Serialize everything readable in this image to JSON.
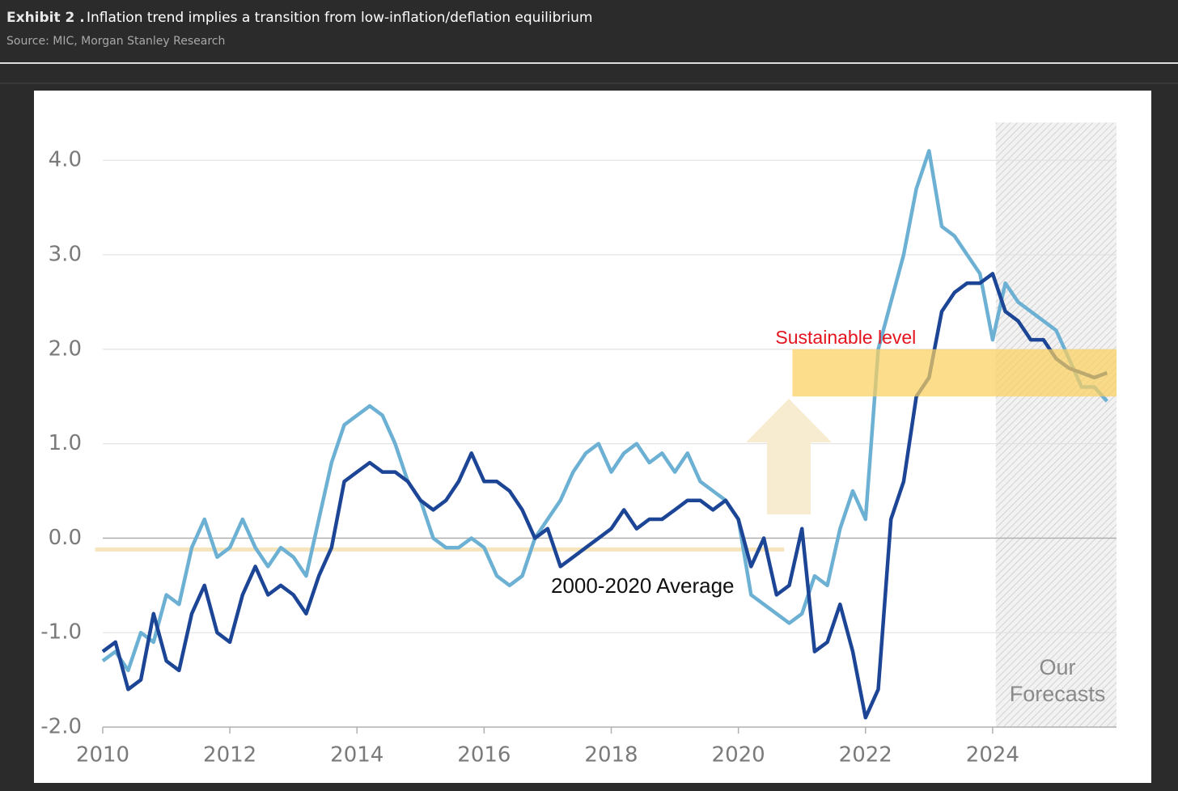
{
  "exhibit": "Exhibit 2 .",
  "chart_data": {
    "type": "line",
    "title": "Inflation trend implies a transition from low-inflation/deflation equilibrium",
    "subtitle": "Source: MIC, Morgan Stanley Research",
    "x": [
      2010.0,
      2010.2,
      2010.4,
      2010.6,
      2010.8,
      2011.0,
      2011.2,
      2011.4,
      2011.6,
      2011.8,
      2012.0,
      2012.2,
      2012.4,
      2012.6,
      2012.8,
      2013.0,
      2013.2,
      2013.4,
      2013.6,
      2013.8,
      2014.0,
      2014.2,
      2014.4,
      2014.6,
      2014.8,
      2015.0,
      2015.2,
      2015.4,
      2015.6,
      2015.8,
      2016.0,
      2016.2,
      2016.4,
      2016.6,
      2016.8,
      2017.0,
      2017.2,
      2017.4,
      2017.6,
      2017.8,
      2018.0,
      2018.2,
      2018.4,
      2018.6,
      2018.8,
      2019.0,
      2019.2,
      2019.4,
      2019.6,
      2019.8,
      2020.0,
      2020.2,
      2020.4,
      2020.6,
      2020.8,
      2021.0,
      2021.2,
      2021.4,
      2021.6,
      2021.8,
      2022.0,
      2022.2,
      2022.4,
      2022.6,
      2022.8,
      2023.0,
      2023.2,
      2023.4,
      2023.6,
      2023.8,
      2024.0,
      2024.2,
      2024.4,
      2024.6,
      2024.8,
      2025.0,
      2025.2,
      2025.4,
      2025.6,
      2025.8
    ],
    "series": [
      {
        "color": "#6cb0d3",
        "values": [
          -1.3,
          -1.2,
          -1.4,
          -1.0,
          -1.1,
          -0.6,
          -0.7,
          -0.1,
          0.2,
          -0.2,
          -0.1,
          0.2,
          -0.1,
          -0.3,
          -0.1,
          -0.2,
          -0.4,
          0.2,
          0.8,
          1.2,
          1.3,
          1.4,
          1.3,
          1.0,
          0.6,
          0.4,
          0.0,
          -0.1,
          -0.1,
          0.0,
          -0.1,
          -0.4,
          -0.5,
          -0.4,
          0.0,
          0.2,
          0.4,
          0.7,
          0.9,
          1.0,
          0.7,
          0.9,
          1.0,
          0.8,
          0.9,
          0.7,
          0.9,
          0.6,
          0.5,
          0.4,
          0.2,
          -0.6,
          -0.7,
          -0.8,
          -0.9,
          -0.8,
          -0.4,
          -0.5,
          0.1,
          0.5,
          0.2,
          2.0,
          2.5,
          3.0,
          3.7,
          4.1,
          3.3,
          3.2,
          3.0,
          2.8,
          2.1,
          2.7,
          2.5,
          2.4,
          2.3,
          2.2,
          1.9,
          1.6,
          1.6,
          1.45
        ]
      },
      {
        "color": "#1c4596",
        "values": [
          -1.2,
          -1.1,
          -1.6,
          -1.5,
          -0.8,
          -1.3,
          -1.4,
          -0.8,
          -0.5,
          -1.0,
          -1.1,
          -0.6,
          -0.3,
          -0.6,
          -0.5,
          -0.6,
          -0.8,
          -0.4,
          -0.1,
          0.6,
          0.7,
          0.8,
          0.7,
          0.7,
          0.6,
          0.4,
          0.3,
          0.4,
          0.6,
          0.9,
          0.6,
          0.6,
          0.5,
          0.3,
          0.0,
          0.1,
          -0.3,
          -0.2,
          -0.1,
          0.0,
          0.1,
          0.3,
          0.1,
          0.2,
          0.2,
          0.3,
          0.4,
          0.4,
          0.3,
          0.4,
          0.2,
          -0.3,
          0.0,
          -0.6,
          -0.5,
          0.1,
          -1.2,
          -1.1,
          -0.7,
          -1.2,
          -1.9,
          -1.6,
          0.2,
          0.6,
          1.5,
          1.7,
          2.4,
          2.6,
          2.7,
          2.7,
          2.8,
          2.4,
          2.3,
          2.1,
          2.1,
          1.9,
          1.8,
          1.75,
          1.7,
          1.75
        ]
      }
    ],
    "xlim": [
      2010,
      2026
    ],
    "xticks": [
      2010,
      2012,
      2014,
      2016,
      2018,
      2020,
      2022,
      2024
    ],
    "ylim": [
      -2,
      4.4
    ],
    "yticks": [
      {
        "value": -2,
        "label": "-2.0"
      },
      {
        "value": -1,
        "label": "-1.0"
      },
      {
        "value": 0,
        "label": "0.0"
      },
      {
        "value": 1,
        "label": "1.0"
      },
      {
        "value": 2,
        "label": "2.0"
      },
      {
        "value": 3,
        "label": "3.0"
      },
      {
        "value": 4,
        "label": "4.0"
      }
    ],
    "grid": true,
    "band": {
      "label": "Sustainable level",
      "from": 1.5,
      "to": 2.0,
      "x_start": 2020.85,
      "color": "#fbd060"
    },
    "average": {
      "label": "2000-2020 Average",
      "value": -0.12,
      "x_range": [
        2009.88,
        2020.72
      ],
      "color": "#f5e4bc"
    },
    "forecast": {
      "lines": [
        "Our",
        "Forecasts"
      ],
      "x_start": 2024.05
    }
  }
}
